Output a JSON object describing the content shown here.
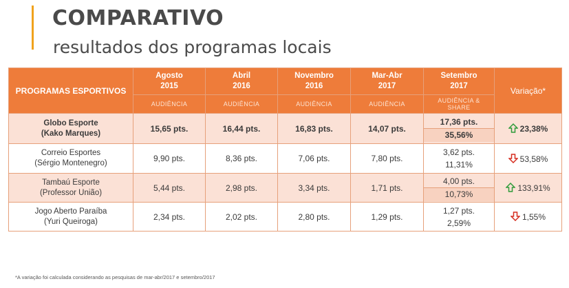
{
  "heading": {
    "title": "COMPARATIVO",
    "subtitle": "resultados dos programas locais"
  },
  "colors": {
    "accent": "#f0a21c",
    "header": "#ee7c3a",
    "shade": "#fbe1d6",
    "up": "#2e9b3a",
    "down": "#d52b1e"
  },
  "table": {
    "program_header": "PROGRAMAS ESPORTIVOS",
    "periods": [
      {
        "line1": "Agosto",
        "line2": "2015",
        "sub": "AUDIÊNCIA"
      },
      {
        "line1": "Abril",
        "line2": "2016",
        "sub": "AUDIÊNCIA"
      },
      {
        "line1": "Novembro",
        "line2": "2016",
        "sub": "AUDIÊNCIA"
      },
      {
        "line1": "Mar-Abr",
        "line2": "2017",
        "sub": "AUDIÊNCIA"
      },
      {
        "line1": "Setembro",
        "line2": "2017",
        "sub1": "AUDIÊNCIA &",
        "sub2": "SHARE"
      }
    ],
    "variation_header": "Variação*",
    "rows": [
      {
        "name1": "Globo Esporte",
        "name2": "(Kako Marques)",
        "values": [
          "15,65 pts.",
          "16,44 pts.",
          "16,83 pts.",
          "14,07 pts."
        ],
        "sept_aud": "17,36 pts.",
        "sept_share": "35,56%",
        "variation": "23,38%",
        "direction": "up-arrow-icon"
      },
      {
        "name1": "Correio Esportes",
        "name2": "(Sérgio Montenegro)",
        "values": [
          "9,90 pts.",
          "8,36 pts.",
          "7,06 pts.",
          "7,80 pts."
        ],
        "sept_aud": "3,62 pts.",
        "sept_share": "11,31%",
        "variation": "53,58%",
        "direction": "down-arrow-icon"
      },
      {
        "name1": "Tambaú Esporte",
        "name2": "(Professor União)",
        "values": [
          "5,44 pts.",
          "2,98 pts.",
          "3,34 pts.",
          "1,71 pts."
        ],
        "sept_aud": "4,00 pts.",
        "sept_share": "10,73%",
        "variation": "133,91%",
        "direction": "up-arrow-icon"
      },
      {
        "name1": "Jogo Aberto Paraíba",
        "name2": "(Yuri Queiroga)",
        "values": [
          "2,34 pts.",
          "2,02 pts.",
          "2,80 pts.",
          "1,29 pts."
        ],
        "sept_aud": "1,27 pts.",
        "sept_share": "2,59%",
        "variation": "1,55%",
        "direction": "down-arrow-icon"
      }
    ]
  },
  "footnote": "*A variação foi calculada considerando as pesquisas de mar-abr/2017 e setembro/2017"
}
